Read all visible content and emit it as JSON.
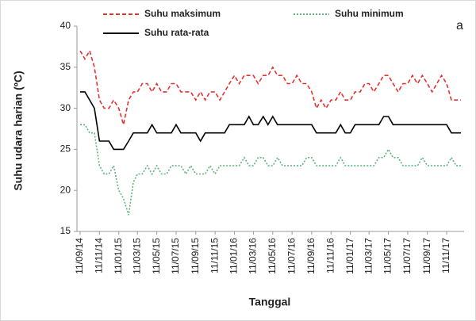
{
  "chart_data": {
    "type": "line",
    "annotation": "a",
    "xlabel": "Tanggal",
    "ylabel": "Suhu udara harian (ºC)",
    "ylim": [
      15,
      40
    ],
    "yticks": [
      15,
      20,
      25,
      30,
      35,
      40
    ],
    "xlim": [
      "01/09/14",
      "05/01/18"
    ],
    "xticks": [
      "11/09/14",
      "11/11/14",
      "11/01/15",
      "11/03/15",
      "11/05/15",
      "11/07/15",
      "11/09/15",
      "11/11/15",
      "11/01/16",
      "11/03/16",
      "11/05/16",
      "11/07/16",
      "11/09/16",
      "11/11/16",
      "11/01/17",
      "11/03/17",
      "11/05/17",
      "11/07/17",
      "11/09/17",
      "11/11/17"
    ],
    "grid": false,
    "x": [
      "11/09/14",
      "26/09/14",
      "11/10/14",
      "26/10/14",
      "11/11/14",
      "26/11/14",
      "11/12/14",
      "26/12/14",
      "11/01/15",
      "26/01/15",
      "11/02/15",
      "26/02/15",
      "11/03/15",
      "26/03/15",
      "11/04/15",
      "26/04/15",
      "11/05/15",
      "26/05/15",
      "11/06/15",
      "26/06/15",
      "11/07/15",
      "26/07/15",
      "11/08/15",
      "26/08/15",
      "11/09/15",
      "26/09/15",
      "11/10/15",
      "26/10/15",
      "11/11/15",
      "26/11/15",
      "11/12/15",
      "26/12/15",
      "11/01/16",
      "26/01/16",
      "11/02/16",
      "26/02/16",
      "11/03/16",
      "26/03/16",
      "11/04/16",
      "26/04/16",
      "11/05/16",
      "26/05/16",
      "11/06/16",
      "26/06/16",
      "11/07/16",
      "26/07/16",
      "11/08/16",
      "26/08/16",
      "11/09/16",
      "26/09/16",
      "11/10/16",
      "26/10/16",
      "11/11/16",
      "26/11/16",
      "11/12/16",
      "26/12/16",
      "11/01/17",
      "26/01/17",
      "11/02/17",
      "26/02/17",
      "11/03/17",
      "26/03/17",
      "11/04/17",
      "26/04/17",
      "11/05/17",
      "26/05/17",
      "11/06/17",
      "26/06/17",
      "11/07/17",
      "26/07/17",
      "11/08/17",
      "26/08/17",
      "11/09/17",
      "26/09/17",
      "11/10/17",
      "26/10/17",
      "11/11/17",
      "26/11/17",
      "11/12/17",
      "26/12/17"
    ],
    "series": [
      {
        "name": "Suhu maksimum",
        "color": "#e8312f",
        "line_style": "dashed",
        "values": [
          37,
          36,
          37,
          35,
          31,
          30,
          30,
          31,
          30,
          28,
          31,
          32,
          32,
          33,
          33,
          32,
          33,
          32,
          32,
          33,
          33,
          32,
          32,
          32,
          31,
          32,
          31,
          32,
          32,
          31,
          32,
          33,
          34,
          33,
          34,
          34,
          34,
          33,
          34,
          34,
          35,
          34,
          34,
          33,
          33,
          34,
          33,
          33,
          32,
          30,
          31,
          30,
          31,
          31,
          32,
          31,
          31,
          32,
          32,
          33,
          33,
          32,
          33,
          34,
          34,
          33,
          32,
          33,
          33,
          34,
          33,
          34,
          33,
          32,
          33,
          34,
          33,
          31,
          31,
          31
        ]
      },
      {
        "name": "Suhu minimum",
        "color": "#5db37e",
        "line_style": "dotted",
        "values": [
          28,
          28,
          27,
          27,
          23,
          22,
          22,
          23,
          20,
          19,
          17,
          21,
          22,
          22,
          23,
          22,
          23,
          22,
          22,
          23,
          23,
          23,
          22,
          23,
          22,
          22,
          22,
          23,
          22,
          23,
          23,
          23,
          23,
          23,
          24,
          23,
          23,
          24,
          24,
          23,
          23,
          24,
          23,
          23,
          23,
          23,
          23,
          24,
          24,
          23,
          23,
          23,
          23,
          23,
          24,
          23,
          23,
          23,
          23,
          23,
          23,
          23,
          24,
          24,
          25,
          24,
          24,
          23,
          23,
          23,
          23,
          24,
          23,
          23,
          23,
          23,
          23,
          24,
          23,
          23
        ]
      },
      {
        "name": "Suhu rata-rata",
        "color": "#000000",
        "line_style": "solid",
        "values": [
          32,
          32,
          31,
          30,
          26,
          26,
          26,
          25,
          25,
          25,
          26,
          27,
          27,
          27,
          27,
          28,
          27,
          27,
          27,
          27,
          28,
          27,
          27,
          27,
          27,
          26,
          27,
          27,
          27,
          27,
          27,
          28,
          28,
          28,
          28,
          29,
          28,
          28,
          29,
          28,
          29,
          28,
          28,
          28,
          28,
          28,
          28,
          28,
          28,
          27,
          27,
          27,
          27,
          27,
          28,
          27,
          27,
          28,
          28,
          28,
          28,
          28,
          28,
          29,
          29,
          28,
          28,
          28,
          28,
          28,
          28,
          28,
          28,
          28,
          28,
          28,
          28,
          27,
          27,
          27
        ]
      }
    ]
  }
}
